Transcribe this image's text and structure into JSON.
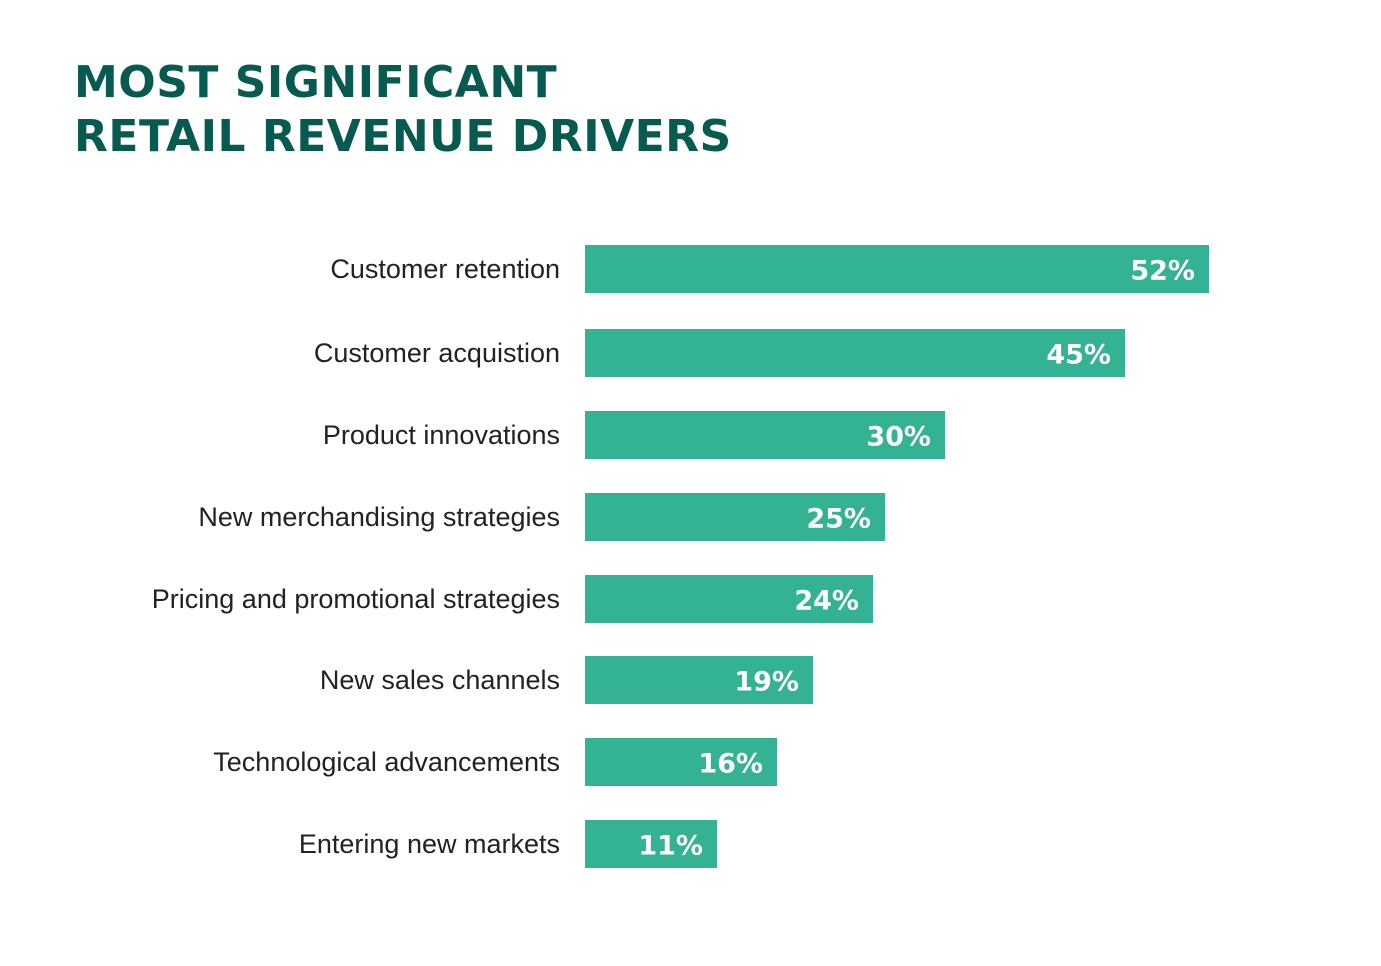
{
  "title_lines": [
    "MOST SIGNIFICANT",
    "RETAIL REVENUE DRIVERS"
  ],
  "bar_color": "#33b294",
  "title_color": "#065a4f",
  "chart_data": {
    "type": "bar",
    "orientation": "horizontal",
    "title": "MOST SIGNIFICANT RETAIL REVENUE DRIVERS",
    "xlabel": "",
    "ylabel": "",
    "xlim": [
      0,
      52
    ],
    "grid": false,
    "legend": "none",
    "value_suffix": "%",
    "categories": [
      "Customer retention",
      "Customer acquistion",
      "Product innovations",
      "New merchandising strategies",
      "Pricing and promotional strategies",
      "New sales channels",
      "Technological advancements",
      "Entering new markets"
    ],
    "values": [
      52,
      45,
      30,
      25,
      24,
      19,
      16,
      11
    ]
  }
}
